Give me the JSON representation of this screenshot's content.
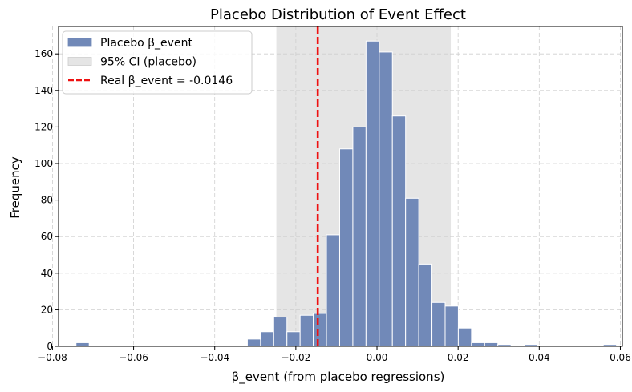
{
  "chart_data": {
    "type": "bar",
    "title": "Placebo Distribution of Event Effect",
    "xlabel": "β_event (from placebo regressions)",
    "ylabel": "Frequency",
    "xlim": [
      -0.0785,
      0.0605
    ],
    "ylim": [
      0,
      175
    ],
    "xticks": [
      -0.08,
      -0.06,
      -0.04,
      -0.02,
      0.0,
      0.02,
      0.04,
      0.06
    ],
    "xtick_labels": [
      "−0.08",
      "−0.06",
      "−0.04",
      "−0.02",
      "0.00",
      "0.02",
      "0.04",
      "0.06"
    ],
    "yticks": [
      0,
      20,
      40,
      60,
      80,
      100,
      120,
      140,
      160
    ],
    "ytick_labels": [
      "0",
      "20",
      "40",
      "60",
      "80",
      "100",
      "120",
      "140",
      "160"
    ],
    "grid": true,
    "legend_position": "top-left",
    "bar_color": "#7189b8",
    "bar_edge_color": "#ffffff",
    "bin_width": 0.00325,
    "bins": [
      {
        "x0": -0.0742,
        "count": 2
      },
      {
        "x0": -0.03195,
        "count": 4
      },
      {
        "x0": -0.0287,
        "count": 8
      },
      {
        "x0": -0.02545,
        "count": 16
      },
      {
        "x0": -0.0222,
        "count": 8
      },
      {
        "x0": -0.01895,
        "count": 17
      },
      {
        "x0": -0.0157,
        "count": 18
      },
      {
        "x0": -0.01245,
        "count": 61
      },
      {
        "x0": -0.0092,
        "count": 108
      },
      {
        "x0": -0.00595,
        "count": 120
      },
      {
        "x0": -0.0027,
        "count": 167
      },
      {
        "x0": 0.00055,
        "count": 161
      },
      {
        "x0": 0.0038,
        "count": 126
      },
      {
        "x0": 0.00705,
        "count": 81
      },
      {
        "x0": 0.0103,
        "count": 45
      },
      {
        "x0": 0.01355,
        "count": 24
      },
      {
        "x0": 0.0168,
        "count": 22
      },
      {
        "x0": 0.02005,
        "count": 10
      },
      {
        "x0": 0.0233,
        "count": 2
      },
      {
        "x0": 0.02655,
        "count": 2
      },
      {
        "x0": 0.0298,
        "count": 1
      },
      {
        "x0": 0.0363,
        "count": 1
      },
      {
        "x0": 0.0558,
        "count": 1
      }
    ],
    "ci_band": {
      "lo": -0.0248,
      "hi": 0.0182,
      "color": "#e5e5e5"
    },
    "real_line": {
      "x": -0.0146,
      "color": "#ee1111"
    },
    "legend": [
      {
        "label": "Placebo β_event",
        "kind": "patch",
        "color": "#7189b8"
      },
      {
        "label": "95% CI (placebo)",
        "kind": "patch",
        "color": "#e5e5e5"
      },
      {
        "label": "Real β_event = -0.0146",
        "kind": "dashed-line",
        "color": "#ee1111"
      }
    ]
  }
}
